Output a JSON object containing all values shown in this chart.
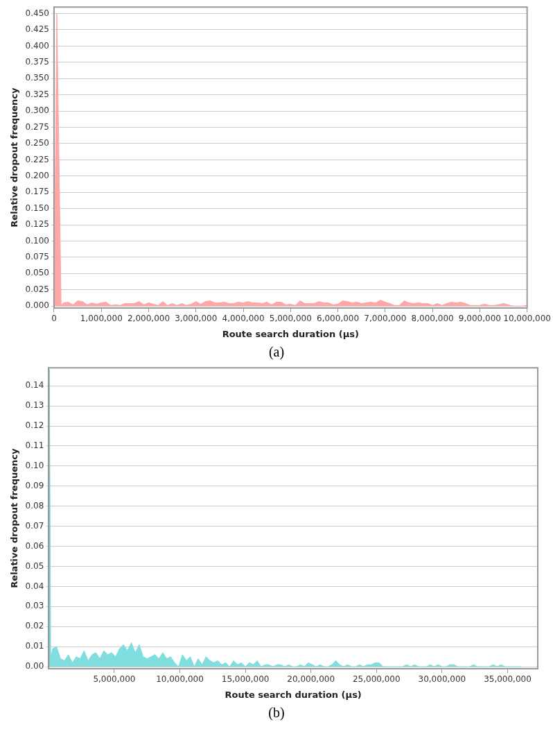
{
  "chart_data": [
    {
      "type": "area",
      "xlabel": "Route search duration (µs)",
      "ylabel": "Relative dropout frequency",
      "grid": "y",
      "annotations": [
        "(a)"
      ],
      "xlim": [
        0,
        10000000
      ],
      "ylim": [
        -0.003,
        0.46
      ],
      "xticks": [
        0,
        {
          "value": 1000000,
          "label": "1,000,000"
        },
        {
          "value": 2000000,
          "label": "2,000,000"
        },
        {
          "value": 3000000,
          "label": "3,000,000"
        },
        {
          "value": 4000000,
          "label": "4,000,000"
        },
        {
          "value": 5000000,
          "label": "5,000,000"
        },
        {
          "value": 6000000,
          "label": "6,000,000"
        },
        {
          "value": 7000000,
          "label": "7,000,000"
        },
        {
          "value": 8000000,
          "label": "8,000,000"
        },
        {
          "value": 9000000,
          "label": "9,000,000"
        },
        {
          "value": 10000000,
          "label": "10,000,000"
        }
      ],
      "yticks": [
        {
          "value": 0,
          "label": "0.000"
        },
        {
          "value": 0.025,
          "label": "0.025"
        },
        {
          "value": 0.05,
          "label": "0.050"
        },
        {
          "value": 0.075,
          "label": "0.075"
        },
        {
          "value": 0.1,
          "label": "0.100"
        },
        {
          "value": 0.125,
          "label": "0.125"
        },
        {
          "value": 0.15,
          "label": "0.150"
        },
        {
          "value": 0.175,
          "label": "0.175"
        },
        {
          "value": 0.2,
          "label": "0.200"
        },
        {
          "value": 0.225,
          "label": "0.225"
        },
        {
          "value": 0.25,
          "label": "0.250"
        },
        {
          "value": 0.275,
          "label": "0.275"
        },
        {
          "value": 0.3,
          "label": "0.300"
        },
        {
          "value": 0.325,
          "label": "0.325"
        },
        {
          "value": 0.35,
          "label": "0.350"
        },
        {
          "value": 0.375,
          "label": "0.375"
        },
        {
          "value": 0.4,
          "label": "0.400"
        },
        {
          "value": 0.425,
          "label": "0.425"
        },
        {
          "value": 0.45,
          "label": "0.450"
        }
      ],
      "series": [
        {
          "color": "#ffa6a6",
          "x": [
            0,
            60000,
            150000,
            200000,
            300000,
            400000,
            500000,
            600000,
            700000,
            800000,
            900000,
            1000000,
            1100000,
            1200000,
            1300000,
            1400000,
            1500000,
            1600000,
            1700000,
            1800000,
            1900000,
            2000000,
            2100000,
            2200000,
            2300000,
            2400000,
            2500000,
            2600000,
            2700000,
            2800000,
            2900000,
            3000000,
            3100000,
            3200000,
            3300000,
            3400000,
            3500000,
            3600000,
            3700000,
            3800000,
            3900000,
            4000000,
            4100000,
            4200000,
            4300000,
            4400000,
            4500000,
            4600000,
            4700000,
            4800000,
            4900000,
            5000000,
            5100000,
            5200000,
            5300000,
            5400000,
            5500000,
            5600000,
            5700000,
            5800000,
            5900000,
            6000000,
            6100000,
            6200000,
            6300000,
            6400000,
            6500000,
            6600000,
            6700000,
            6800000,
            6900000,
            7000000,
            7100000,
            7200000,
            7300000,
            7400000,
            7500000,
            7600000,
            7700000,
            7800000,
            7900000,
            8000000,
            8100000,
            8200000,
            8300000,
            8400000,
            8500000,
            8600000,
            8700000,
            8800000,
            8900000,
            9000000,
            9100000,
            9200000,
            9300000,
            9400000,
            9500000,
            9600000,
            9700000,
            9800000,
            9900000,
            10000000
          ],
          "values": [
            0,
            0.45,
            0.001,
            0.005,
            0.006,
            0.002,
            0.008,
            0.007,
            0.002,
            0.005,
            0.003,
            0.005,
            0.006,
            0.001,
            0.002,
            0.001,
            0.004,
            0.004,
            0.004,
            0.007,
            0.002,
            0.005,
            0.003,
            0.001,
            0.007,
            0.001,
            0.004,
            0.001,
            0.004,
            0.001,
            0.003,
            0.007,
            0.003,
            0.007,
            0.008,
            0.005,
            0.005,
            0.006,
            0.004,
            0.004,
            0.006,
            0.005,
            0.007,
            0.005,
            0.005,
            0.004,
            0.006,
            0.002,
            0.006,
            0.006,
            0.002,
            0.003,
            0.001,
            0.008,
            0.004,
            0.004,
            0.004,
            0.007,
            0.005,
            0.005,
            0.002,
            0.003,
            0.008,
            0.007,
            0.005,
            0.006,
            0.004,
            0.005,
            0.006,
            0.005,
            0.009,
            0.006,
            0.004,
            0.001,
            0.001,
            0.008,
            0.005,
            0.004,
            0.005,
            0.004,
            0.004,
            0.001,
            0.004,
            0.001,
            0.004,
            0.006,
            0.005,
            0.006,
            0.004,
            0.001,
            0.001,
            0.001,
            0.003,
            0.001,
            0.001,
            0.002,
            0.004,
            0.002,
            0,
            0,
            0,
            0.001
          ]
        }
      ]
    },
    {
      "type": "area",
      "xlabel": "Route search duration (µs)",
      "ylabel": "Relative dropout frequency",
      "grid": "y",
      "annotations": [
        "(b)"
      ],
      "xlim": [
        0,
        37300000
      ],
      "ylim": [
        -0.001,
        0.149
      ],
      "xticks": [
        {
          "value": 5000000,
          "label": "5,000,000"
        },
        {
          "value": 10000000,
          "label": "10,000,000"
        },
        {
          "value": 15000000,
          "label": "15,000,000"
        },
        {
          "value": 20000000,
          "label": "20,000,000"
        },
        {
          "value": 25000000,
          "label": "25,000,000"
        },
        {
          "value": 30000000,
          "label": "30,000,000"
        },
        {
          "value": 35000000,
          "label": "35,000,000"
        }
      ],
      "yticks": [
        {
          "value": 0,
          "label": "0.00"
        },
        {
          "value": 0.01,
          "label": "0.01"
        },
        {
          "value": 0.02,
          "label": "0.02"
        },
        {
          "value": 0.03,
          "label": "0.03"
        },
        {
          "value": 0.04,
          "label": "0.04"
        },
        {
          "value": 0.05,
          "label": "0.05"
        },
        {
          "value": 0.06,
          "label": "0.06"
        },
        {
          "value": 0.07,
          "label": "0.07"
        },
        {
          "value": 0.08,
          "label": "0.08"
        },
        {
          "value": 0.09,
          "label": "0.09"
        },
        {
          "value": 0.1,
          "label": "0.10"
        },
        {
          "value": 0.11,
          "label": "0.11"
        },
        {
          "value": 0.12,
          "label": "0.12"
        },
        {
          "value": 0.13,
          "label": "0.13"
        },
        {
          "value": 0.14,
          "label": "0.14"
        }
      ],
      "series": [
        {
          "color": "#80dede",
          "x": [
            0,
            50000,
            150000,
            300000,
            600000,
            900000,
            1200000,
            1500000,
            1800000,
            2100000,
            2400000,
            2700000,
            3000000,
            3300000,
            3600000,
            3900000,
            4200000,
            4500000,
            4800000,
            5100000,
            5400000,
            5700000,
            6000000,
            6300000,
            6600000,
            6900000,
            7200000,
            7500000,
            7800000,
            8100000,
            8400000,
            8700000,
            9000000,
            9300000,
            9600000,
            9900000,
            10200000,
            10500000,
            10800000,
            11100000,
            11400000,
            11700000,
            12000000,
            12300000,
            12600000,
            12900000,
            13200000,
            13500000,
            13800000,
            14100000,
            14400000,
            14700000,
            15000000,
            15300000,
            15600000,
            15900000,
            16200000,
            16500000,
            16800000,
            17100000,
            17400000,
            17700000,
            18000000,
            18300000,
            18600000,
            18900000,
            19200000,
            19500000,
            19800000,
            20100000,
            20400000,
            20700000,
            21000000,
            21300000,
            21600000,
            21900000,
            22200000,
            22500000,
            22800000,
            23100000,
            23400000,
            23700000,
            24000000,
            24300000,
            24600000,
            24900000,
            25200000,
            25500000,
            25800000,
            26100000,
            26400000,
            26700000,
            27000000,
            27300000,
            27600000,
            27900000,
            28200000,
            28500000,
            28800000,
            29100000,
            29400000,
            29700000,
            30000000,
            30300000,
            30600000,
            30900000,
            31200000,
            31500000,
            31800000,
            32100000,
            32400000,
            32700000,
            33000000,
            33300000,
            33600000,
            33900000,
            34200000,
            34500000,
            34800000,
            35100000,
            35400000,
            35700000,
            36000000
          ],
          "values": [
            0,
            0.148,
            0.004,
            0.009,
            0.01,
            0.004,
            0.003,
            0.006,
            0.002,
            0.005,
            0.004,
            0.008,
            0.003,
            0.006,
            0.007,
            0.004,
            0.008,
            0.006,
            0.007,
            0.005,
            0.009,
            0.011,
            0.008,
            0.012,
            0.007,
            0.011,
            0.005,
            0.004,
            0.005,
            0.006,
            0.004,
            0.007,
            0.004,
            0.005,
            0.002,
            0,
            0.006,
            0.003,
            0.005,
            0,
            0.004,
            0.001,
            0.005,
            0.003,
            0.002,
            0.003,
            0.001,
            0.002,
            0,
            0.003,
            0.001,
            0.002,
            0,
            0.002,
            0.001,
            0.003,
            0,
            0.001,
            0.001,
            0,
            0.001,
            0.001,
            0,
            0.001,
            0,
            0,
            0.001,
            0,
            0.002,
            0.001,
            0,
            0.001,
            0,
            0,
            0.001,
            0.003,
            0.001,
            0,
            0.001,
            0,
            0,
            0.001,
            0,
            0.001,
            0.001,
            0.002,
            0.002,
            0,
            0,
            0,
            0,
            0,
            0,
            0.001,
            0,
            0.001,
            0,
            0,
            0,
            0.001,
            0,
            0.001,
            0,
            0,
            0.001,
            0.001,
            0,
            0,
            0,
            0,
            0.001,
            0,
            0,
            0,
            0,
            0.001,
            0,
            0.001,
            0,
            0,
            0,
            0,
            0
          ]
        }
      ]
    }
  ]
}
